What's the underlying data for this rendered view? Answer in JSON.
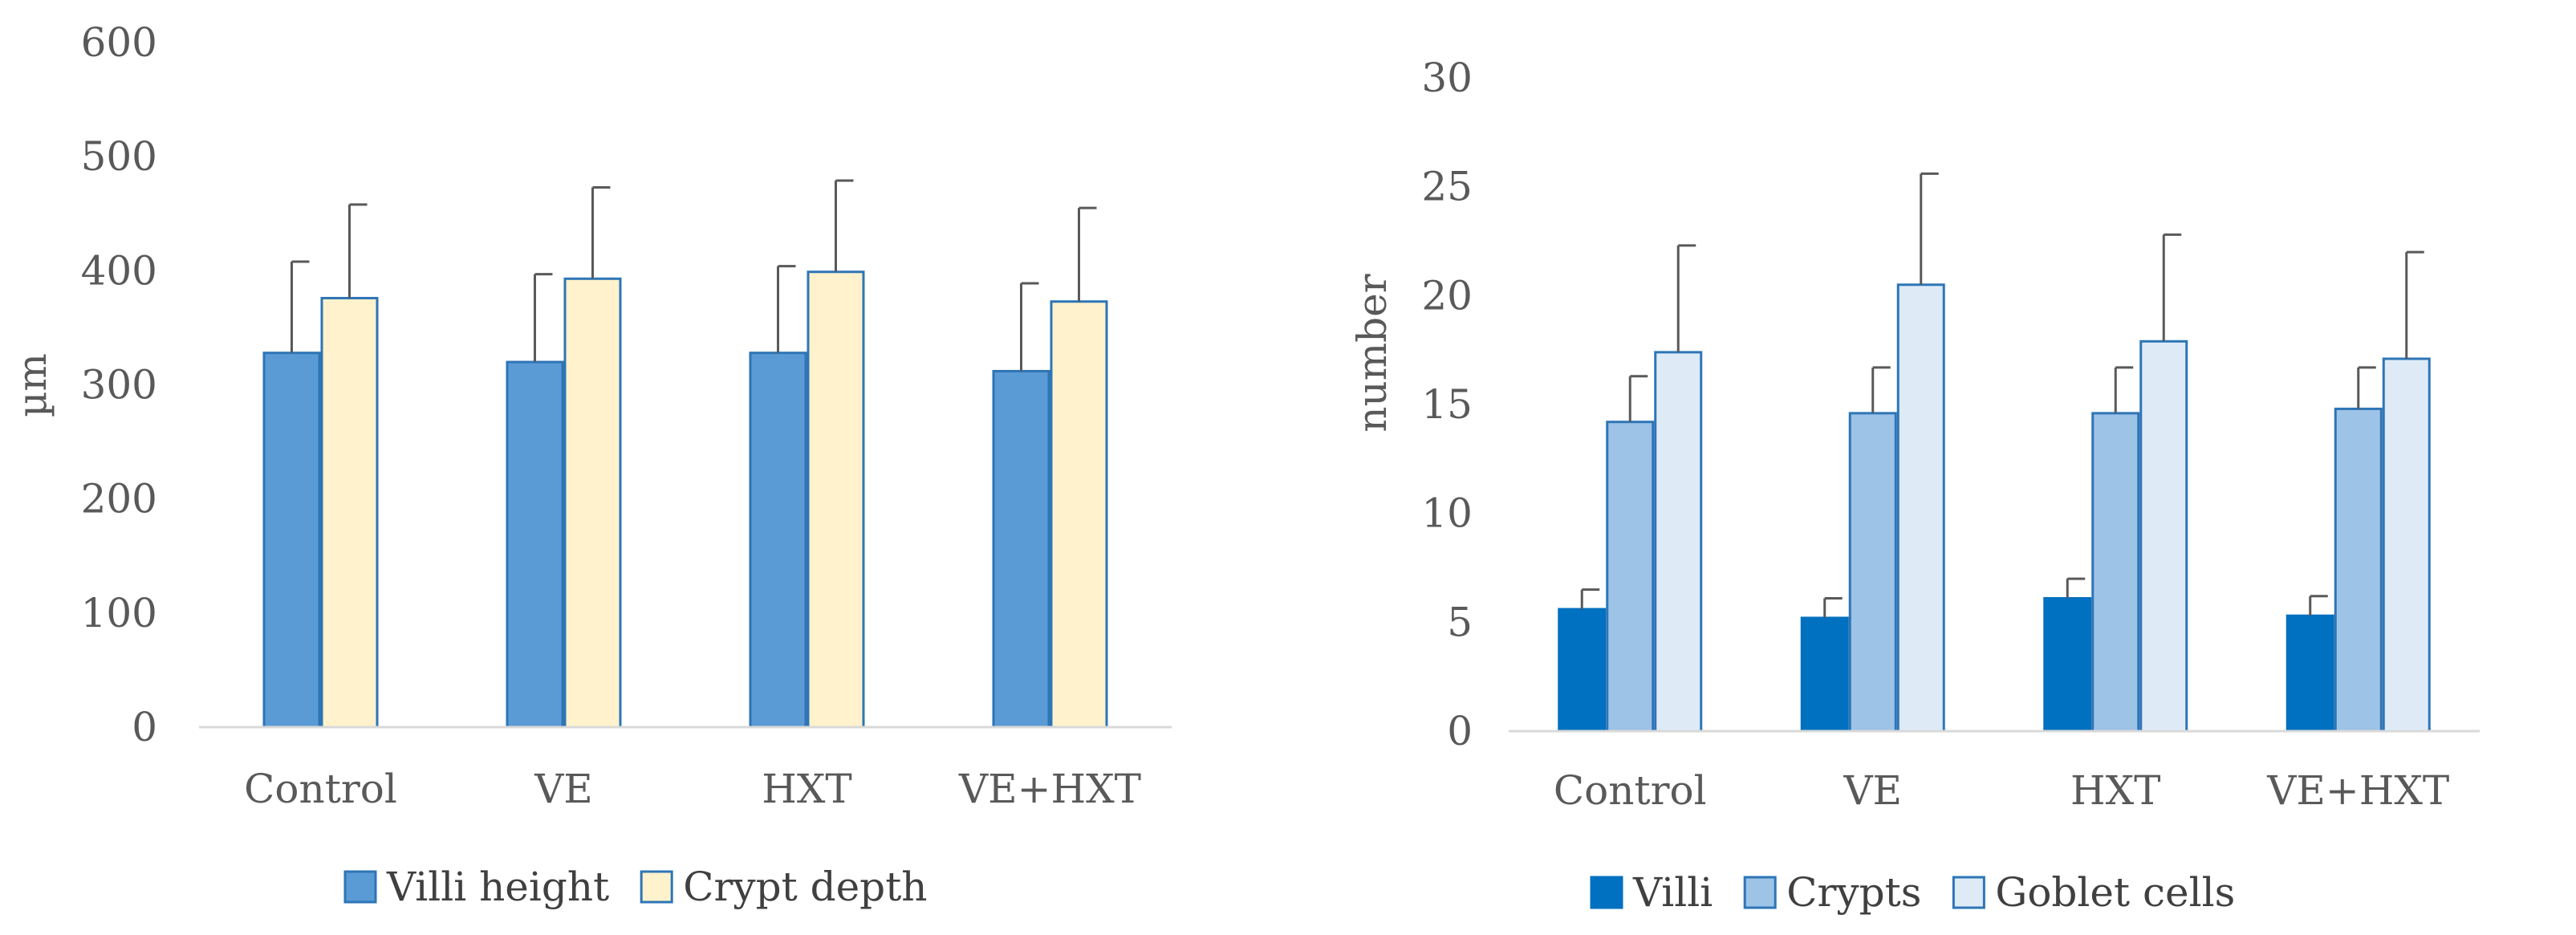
{
  "chart_data": [
    {
      "type": "bar",
      "title": "",
      "xlabel": "",
      "ylabel": "µm",
      "ylim": [
        0,
        600
      ],
      "yticks": [
        0,
        100,
        200,
        300,
        400,
        500,
        600
      ],
      "grid": false,
      "legend_position": "bottom",
      "categories": [
        "Control",
        "VE",
        "HXT",
        "VE+HXT"
      ],
      "series": [
        {
          "name": "Villi height",
          "color": "#5b9bd5",
          "border": "#2e75b6",
          "values": [
            328,
            320,
            328,
            312
          ],
          "errors": [
            80,
            77,
            76,
            77
          ]
        },
        {
          "name": "Crypt depth",
          "color": "#fff2cc",
          "border": "#2e75b6",
          "values": [
            376,
            393,
            399,
            373
          ],
          "errors": [
            82,
            80,
            80,
            82
          ]
        }
      ]
    },
    {
      "type": "bar",
      "title": "",
      "xlabel": "",
      "ylabel": "number",
      "ylim": [
        0,
        30
      ],
      "yticks": [
        0,
        5,
        10,
        15,
        20,
        25,
        30
      ],
      "grid": false,
      "legend_position": "bottom",
      "categories": [
        "Control",
        "VE",
        "HXT",
        "VE+HXT"
      ],
      "series": [
        {
          "name": "Villi",
          "color": "#0070c0",
          "border": "#0070c0",
          "values": [
            5.6,
            5.2,
            6.1,
            5.3
          ],
          "errors": [
            0.9,
            0.9,
            0.9,
            0.9
          ]
        },
        {
          "name": "Crypts",
          "color": "#9dc3e6",
          "border": "#2e75b6",
          "values": [
            14.2,
            14.6,
            14.6,
            14.8
          ],
          "errors": [
            2.1,
            2.1,
            2.1,
            1.9
          ]
        },
        {
          "name": "Goblet cells",
          "color": "#deebf7",
          "border": "#2e75b6",
          "values": [
            17.4,
            20.5,
            17.9,
            17.1
          ],
          "errors": [
            4.9,
            5.1,
            4.9,
            4.9
          ]
        }
      ]
    }
  ]
}
